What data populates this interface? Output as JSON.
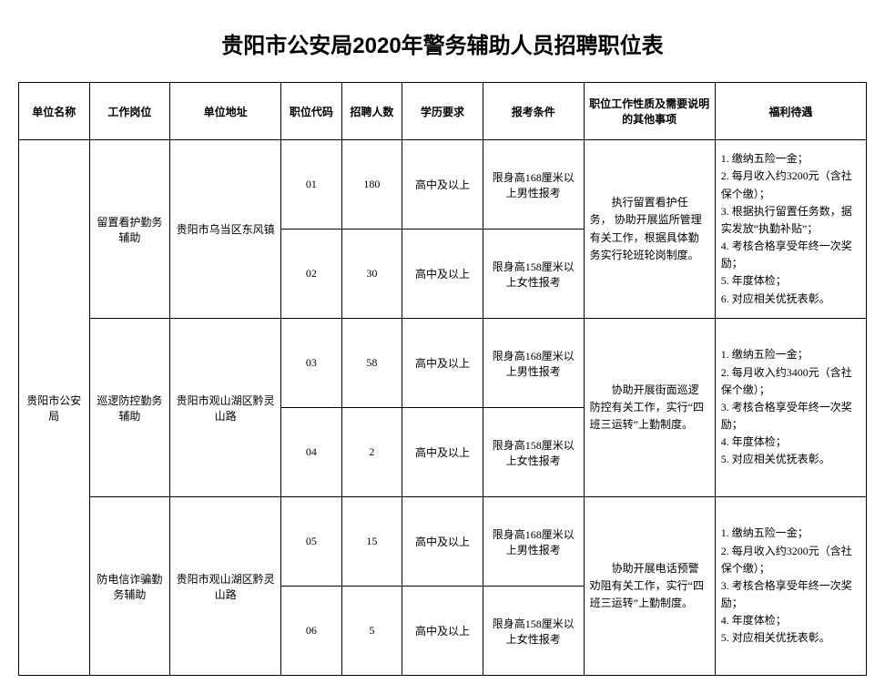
{
  "title": "贵阳市公安局2020年警务辅助人员招聘职位表",
  "headers": {
    "unit": "单位名称",
    "job": "工作岗位",
    "addr": "单位地址",
    "code": "职位代码",
    "count": "招聘人数",
    "edu": "学历要求",
    "cond": "报考条件",
    "nature": "职位工作性质及需要说明的其他事项",
    "benefit": "福利待遇"
  },
  "unit_name": "贵阳市公安局",
  "groups": [
    {
      "job": "留置看护勤务辅助",
      "addr": "贵阳市乌当区东风镇",
      "nature": "　　执行留置看护任务，  协助开展监所管理有关工作，根据具体勤务实行轮班轮岗制度。",
      "benefit": "1. 缴纳五险一金；\n2. 每月收入约3200元（含社保个缴）；\n3. 根据执行留置任务数，据实发放“执勤补贴”；\n4. 考核合格享受年终一次奖励；\n5. 年度体检；\n6. 对应相关优抚表彰。",
      "rows": [
        {
          "code": "01",
          "count": "180",
          "edu": "高中及以上",
          "cond": "限身高168厘米以上男性报考"
        },
        {
          "code": "02",
          "count": "30",
          "edu": "高中及以上",
          "cond": "限身高158厘米以上女性报考"
        }
      ]
    },
    {
      "job": "巡逻防控勤务辅助",
      "addr": "贵阳市观山湖区黔灵山路",
      "nature": "　　协助开展街面巡逻防控有关工作，实行“四班三运转”上勤制度。",
      "benefit": "1. 缴纳五险一金；\n2. 每月收入约3400元（含社保个缴）；\n3. 考核合格享受年终一次奖励；\n4. 年度体检；\n5. 对应相关优抚表彰。",
      "rows": [
        {
          "code": "03",
          "count": "58",
          "edu": "高中及以上",
          "cond": "限身高168厘米以上男性报考"
        },
        {
          "code": "04",
          "count": "2",
          "edu": "高中及以上",
          "cond": "限身高158厘米以上女性报考"
        }
      ]
    },
    {
      "job": "防电信诈骗勤务辅助",
      "addr": "贵阳市观山湖区黔灵山路",
      "nature": "　　协助开展电话预警劝阻有关工作，实行“四班三运转”上勤制度。",
      "benefit": "1. 缴纳五险一金；\n2. 每月收入约3200元（含社保个缴）；\n3. 考核合格享受年终一次奖励；\n4. 年度体检；\n5. 对应相关优抚表彰。",
      "rows": [
        {
          "code": "05",
          "count": "15",
          "edu": "高中及以上",
          "cond": "限身高168厘米以上男性报考"
        },
        {
          "code": "06",
          "count": "5",
          "edu": "高中及以上",
          "cond": "限身高158厘米以上女性报考"
        }
      ]
    }
  ]
}
